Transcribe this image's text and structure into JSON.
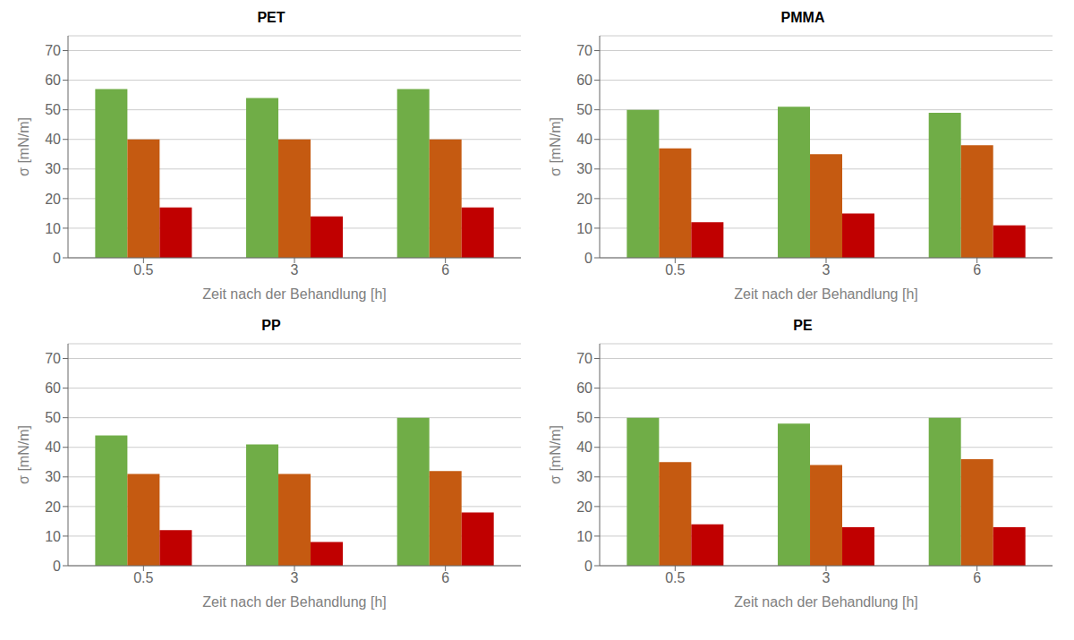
{
  "chart_data": [
    {
      "type": "bar",
      "title": "PET",
      "categories": [
        "0.5",
        "3",
        "6"
      ],
      "series": [
        {
          "color": "#70AD47",
          "values": [
            57,
            54,
            57
          ]
        },
        {
          "color": "#C55A11",
          "values": [
            40,
            40,
            40
          ]
        },
        {
          "color": "#C00000",
          "values": [
            17,
            14,
            17
          ]
        }
      ],
      "xlabel": "Zeit nach der Behandlung [h]",
      "ylabel": "σ [mN/m]",
      "ylim": [
        0,
        75
      ],
      "yticks": [
        0,
        10,
        20,
        30,
        40,
        50,
        60,
        70
      ],
      "grid": true
    },
    {
      "type": "bar",
      "title": "PMMA",
      "categories": [
        "0.5",
        "3",
        "6"
      ],
      "series": [
        {
          "color": "#70AD47",
          "values": [
            50,
            51,
            49
          ]
        },
        {
          "color": "#C55A11",
          "values": [
            37,
            35,
            38
          ]
        },
        {
          "color": "#C00000",
          "values": [
            12,
            15,
            11
          ]
        }
      ],
      "xlabel": "Zeit nach der Behandlung [h]",
      "ylabel": "σ [mN/m]",
      "ylim": [
        0,
        75
      ],
      "yticks": [
        0,
        10,
        20,
        30,
        40,
        50,
        60,
        70
      ],
      "grid": true
    },
    {
      "type": "bar",
      "title": "PP",
      "categories": [
        "0.5",
        "3",
        "6"
      ],
      "series": [
        {
          "color": "#70AD47",
          "values": [
            44,
            41,
            50
          ]
        },
        {
          "color": "#C55A11",
          "values": [
            31,
            31,
            32
          ]
        },
        {
          "color": "#C00000",
          "values": [
            12,
            8,
            18
          ]
        }
      ],
      "xlabel": "Zeit nach der Behandlung [h]",
      "ylabel": "σ [mN/m]",
      "ylim": [
        0,
        75
      ],
      "yticks": [
        0,
        10,
        20,
        30,
        40,
        50,
        60,
        70
      ],
      "grid": true
    },
    {
      "type": "bar",
      "title": "PE",
      "categories": [
        "0.5",
        "3",
        "6"
      ],
      "series": [
        {
          "color": "#70AD47",
          "values": [
            50,
            48,
            50
          ]
        },
        {
          "color": "#C55A11",
          "values": [
            35,
            34,
            36
          ]
        },
        {
          "color": "#C00000",
          "values": [
            14,
            13,
            13
          ]
        }
      ],
      "xlabel": "Zeit nach der Behandlung [h]",
      "ylabel": "σ [mN/m]",
      "ylim": [
        0,
        75
      ],
      "yticks": [
        0,
        10,
        20,
        30,
        40,
        50,
        60,
        70
      ],
      "grid": true
    }
  ]
}
